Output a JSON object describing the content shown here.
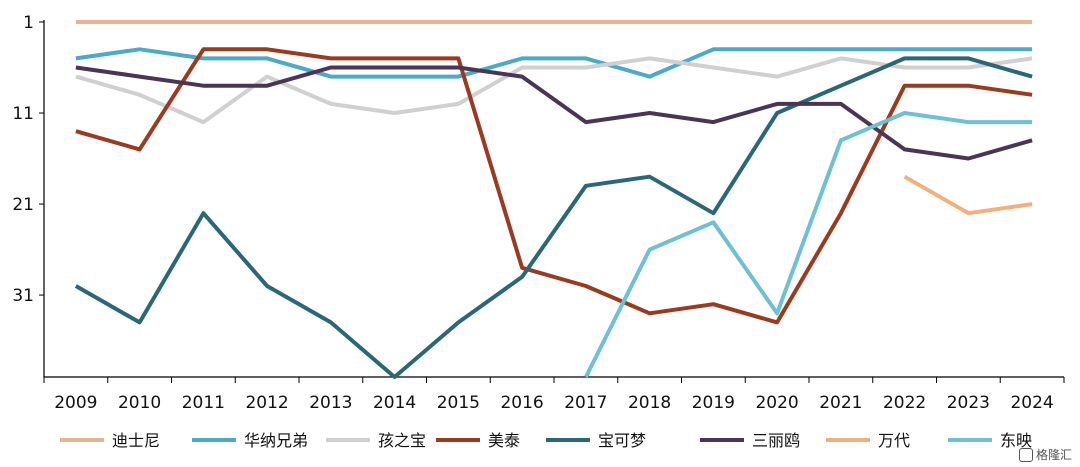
{
  "chart_data": {
    "type": "line",
    "title": "",
    "xlabel": "",
    "ylabel": "",
    "y_inverted": true,
    "ylim": [
      1,
      40
    ],
    "yticks": [
      1,
      11,
      21,
      31
    ],
    "grid": false,
    "legend_position": "bottom",
    "categories": [
      "2009",
      "2010",
      "2011",
      "2012",
      "2013",
      "2014",
      "2015",
      "2016",
      "2017",
      "2018",
      "2019",
      "2020",
      "2021",
      "2022",
      "2023",
      "2024"
    ],
    "series": [
      {
        "name": "迪士尼",
        "color": "#E8B48E",
        "values": [
          1,
          1,
          1,
          1,
          1,
          1,
          1,
          1,
          1,
          1,
          1,
          1,
          1,
          1,
          1,
          1
        ]
      },
      {
        "name": "华纳兄弟",
        "color": "#4BAAC8",
        "values": [
          5,
          4,
          5,
          5,
          7,
          7,
          7,
          5,
          5,
          7,
          4,
          4,
          4,
          4,
          4,
          4
        ]
      },
      {
        "name": "孩之宝",
        "color": "#D0D0D0",
        "values": [
          7,
          9,
          12,
          7,
          10,
          11,
          10,
          6,
          6,
          5,
          6,
          7,
          5,
          6,
          6,
          5
        ]
      },
      {
        "name": "美泰",
        "color": "#9A3A1F",
        "values": [
          13,
          15,
          4,
          4,
          5,
          5,
          5,
          28,
          30,
          33,
          32,
          34,
          22,
          8,
          8,
          9
        ]
      },
      {
        "name": "宝可梦",
        "color": "#2A6877",
        "values": [
          30,
          34,
          22,
          30,
          34,
          40,
          34,
          29,
          19,
          18,
          22,
          11,
          8,
          5,
          5,
          7
        ]
      },
      {
        "name": "三丽鸥",
        "color": "#4A3556",
        "values": [
          6,
          7,
          8,
          8,
          6,
          6,
          6,
          7,
          12,
          11,
          12,
          10,
          10,
          15,
          16,
          14
        ]
      },
      {
        "name": "万代",
        "color": "#F2B07C",
        "values": [
          null,
          null,
          null,
          null,
          null,
          null,
          null,
          null,
          null,
          null,
          null,
          null,
          null,
          18,
          22,
          21
        ]
      },
      {
        "name": "东映",
        "color": "#6EC0D3",
        "values": [
          null,
          null,
          null,
          null,
          null,
          null,
          null,
          null,
          40,
          26,
          23,
          33,
          14,
          11,
          12,
          12
        ],
        "start_from_axis_bottom": true
      }
    ]
  },
  "watermark": "格隆汇"
}
